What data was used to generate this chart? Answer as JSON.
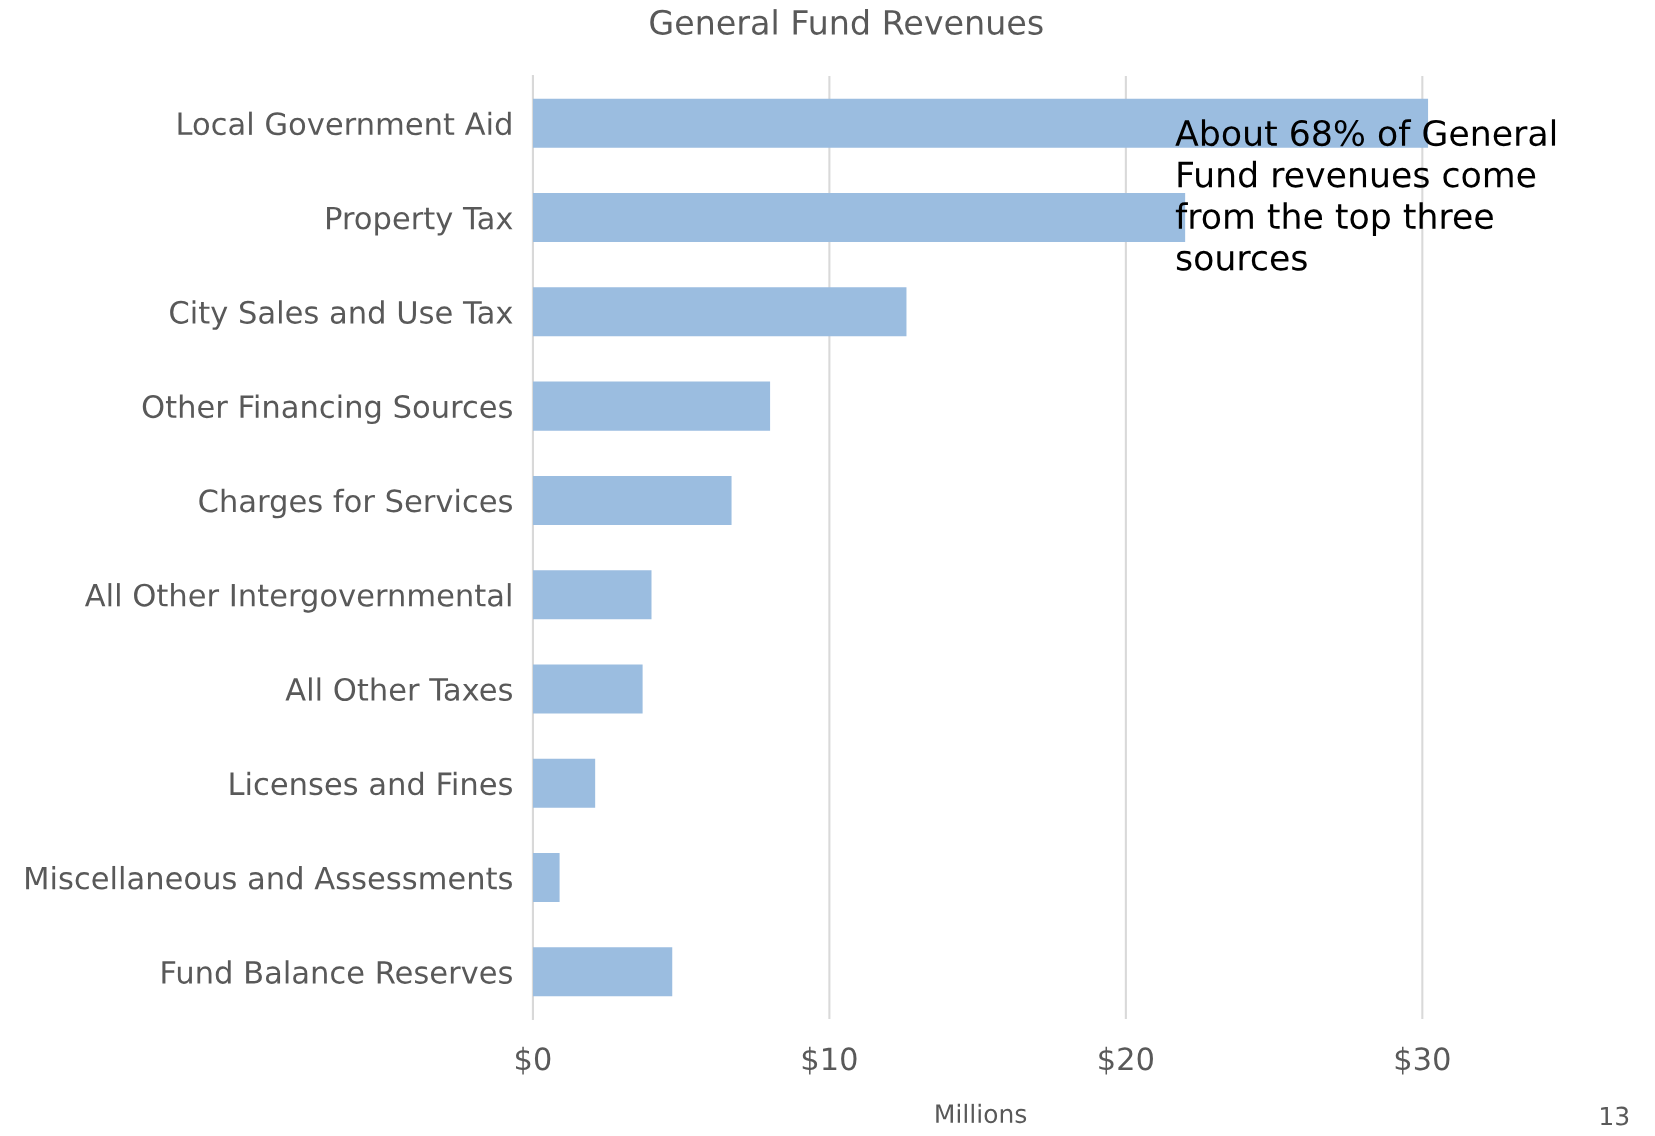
{
  "chart_data": {
    "type": "bar",
    "orientation": "horizontal",
    "title": "General Fund Revenues",
    "xlabel": "Millions",
    "categories": [
      "Local Government Aid",
      "Property Tax",
      "City Sales and Use Tax",
      "Other Financing Sources",
      "Charges for Services",
      "All Other Intergovernmental",
      "All Other Taxes",
      "Licenses and Fines",
      "Miscellaneous and Assessments",
      "Fund Balance Reserves"
    ],
    "values": [
      30.2,
      22.0,
      12.6,
      8.0,
      6.7,
      4.0,
      3.7,
      2.1,
      0.9,
      4.7
    ],
    "color": "#9bbde0",
    "xlim": [
      0,
      30.2
    ],
    "xticks": [
      {
        "value": 0,
        "label": "$0"
      },
      {
        "value": 10,
        "label": "$10"
      },
      {
        "value": 20,
        "label": "$20"
      },
      {
        "value": 30,
        "label": "$30"
      }
    ],
    "grid": "x",
    "annotations": [
      "About 68% of General Fund revenues come from the top three sources",
      "13"
    ]
  }
}
